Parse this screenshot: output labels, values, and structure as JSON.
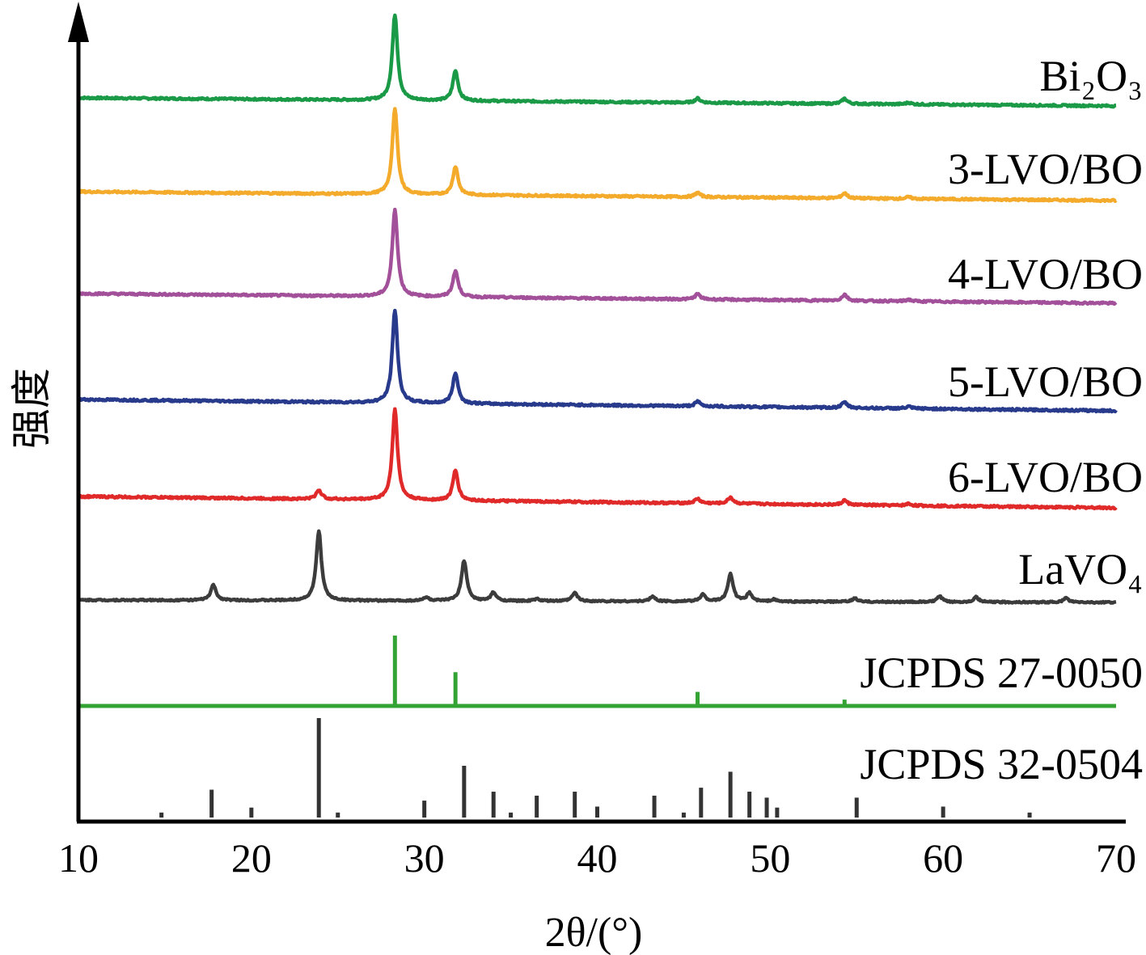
{
  "chart_data": {
    "type": "line",
    "title": "",
    "xlabel": "2θ/(°)",
    "ylabel": "强度",
    "xlim": [
      10,
      70
    ],
    "xticks": [
      "10",
      "20",
      "30",
      "40",
      "50",
      "60",
      "70"
    ],
    "grid": false,
    "series": [
      {
        "name": "Bi₂O₃",
        "color": "#1a9a46",
        "peaks": [
          [
            28.3,
            100
          ],
          [
            31.8,
            35
          ],
          [
            45.8,
            5
          ],
          [
            54.3,
            6
          ],
          [
            58.0,
            2
          ]
        ]
      },
      {
        "name": "3-LVO/BO",
        "color": "#f4aa2a",
        "peaks": [
          [
            28.3,
            100
          ],
          [
            31.8,
            33
          ],
          [
            45.8,
            5
          ],
          [
            54.3,
            6
          ],
          [
            58.0,
            2
          ]
        ]
      },
      {
        "name": "4-LVO/BO",
        "color": "#a3509a",
        "peaks": [
          [
            28.3,
            100
          ],
          [
            31.8,
            30
          ],
          [
            45.8,
            6
          ],
          [
            54.3,
            7
          ],
          [
            58.0,
            2
          ]
        ]
      },
      {
        "name": "5-LVO/BO",
        "color": "#283a8c",
        "peaks": [
          [
            28.3,
            100
          ],
          [
            31.8,
            33
          ],
          [
            45.8,
            5
          ],
          [
            54.3,
            6
          ],
          [
            58.0,
            2
          ]
        ]
      },
      {
        "name": "6-LVO/BO",
        "color": "#e02a2a",
        "peaks": [
          [
            23.9,
            10
          ],
          [
            28.3,
            100
          ],
          [
            31.8,
            33
          ],
          [
            45.8,
            5
          ],
          [
            47.7,
            7
          ],
          [
            54.3,
            5
          ],
          [
            58.0,
            2
          ]
        ]
      },
      {
        "name": "LaVO₄",
        "color": "#3c3c3c",
        "peaks": [
          [
            17.8,
            22
          ],
          [
            23.9,
            100
          ],
          [
            30.1,
            5
          ],
          [
            32.3,
            58
          ],
          [
            34.0,
            12
          ],
          [
            36.5,
            3
          ],
          [
            38.7,
            12
          ],
          [
            43.2,
            7
          ],
          [
            46.1,
            10
          ],
          [
            47.7,
            40
          ],
          [
            48.8,
            12
          ],
          [
            50.2,
            3
          ],
          [
            54.9,
            5
          ],
          [
            59.8,
            8
          ],
          [
            61.9,
            7
          ],
          [
            67.1,
            6
          ]
        ]
      }
    ],
    "references": [
      {
        "name": "JCPDS 27-0050",
        "color": "#33a333",
        "lines": [
          [
            28.3,
            100
          ],
          [
            31.8,
            48
          ],
          [
            45.8,
            20
          ],
          [
            54.3,
            9
          ]
        ]
      },
      {
        "name": "JCPDS 32-0504",
        "color": "#333333",
        "lines": [
          [
            14.8,
            5
          ],
          [
            17.7,
            28
          ],
          [
            20.0,
            10
          ],
          [
            23.9,
            100
          ],
          [
            25.0,
            5
          ],
          [
            30.0,
            17
          ],
          [
            32.3,
            52
          ],
          [
            34.0,
            26
          ],
          [
            35.0,
            5
          ],
          [
            36.5,
            22
          ],
          [
            38.7,
            26
          ],
          [
            40.0,
            11
          ],
          [
            43.3,
            22
          ],
          [
            45.0,
            5
          ],
          [
            46.0,
            30
          ],
          [
            47.7,
            46
          ],
          [
            48.8,
            26
          ],
          [
            49.8,
            20
          ],
          [
            50.4,
            10
          ],
          [
            55.0,
            20
          ],
          [
            60.0,
            11
          ],
          [
            65.0,
            5
          ]
        ]
      }
    ]
  }
}
